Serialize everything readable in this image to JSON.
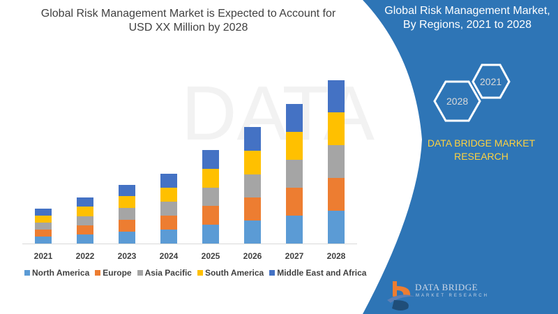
{
  "header": {
    "title_line1": "Global Risk Management Market is Expected to Account for",
    "title_line2": "USD XX Million by 2028"
  },
  "side_panel": {
    "title_line1": "Global Risk Management Market,",
    "title_line2": "By Regions, 2021 to 2028",
    "hex_start": "2021",
    "hex_end": "2028",
    "brand_line1": "DATA BRIDGE MARKET",
    "brand_line2": "RESEARCH",
    "logo_text": "DATA BRIDGE",
    "logo_sub": "MARKET RESEARCH",
    "panel_color": "#2e75b6",
    "brand_color": "#ffd23f"
  },
  "chart_data": {
    "type": "bar",
    "stacked": true,
    "title": "Global Risk Management Market is Expected to Account for USD XX Million by 2028",
    "xlabel": "",
    "ylabel": "",
    "grid": false,
    "legend_position": "bottom",
    "categories": [
      "2021",
      "2022",
      "2023",
      "2024",
      "2025",
      "2026",
      "2027",
      "2028"
    ],
    "series": [
      {
        "name": "North America",
        "color": "#5b9bd5",
        "values": [
          10,
          13,
          17,
          20,
          27,
          33,
          40,
          47
        ]
      },
      {
        "name": "Europe",
        "color": "#ed7d31",
        "values": [
          10,
          13,
          17,
          20,
          27,
          33,
          40,
          47
        ]
      },
      {
        "name": "Asia Pacific",
        "color": "#a5a5a5",
        "values": [
          10,
          13,
          17,
          20,
          26,
          33,
          40,
          47
        ]
      },
      {
        "name": "South America",
        "color": "#ffc000",
        "values": [
          10,
          14,
          17,
          20,
          27,
          34,
          40,
          47
        ]
      },
      {
        "name": "Middle East and Africa",
        "color": "#4472c4",
        "values": [
          10,
          13,
          16,
          20,
          27,
          34,
          40,
          46
        ]
      }
    ]
  }
}
